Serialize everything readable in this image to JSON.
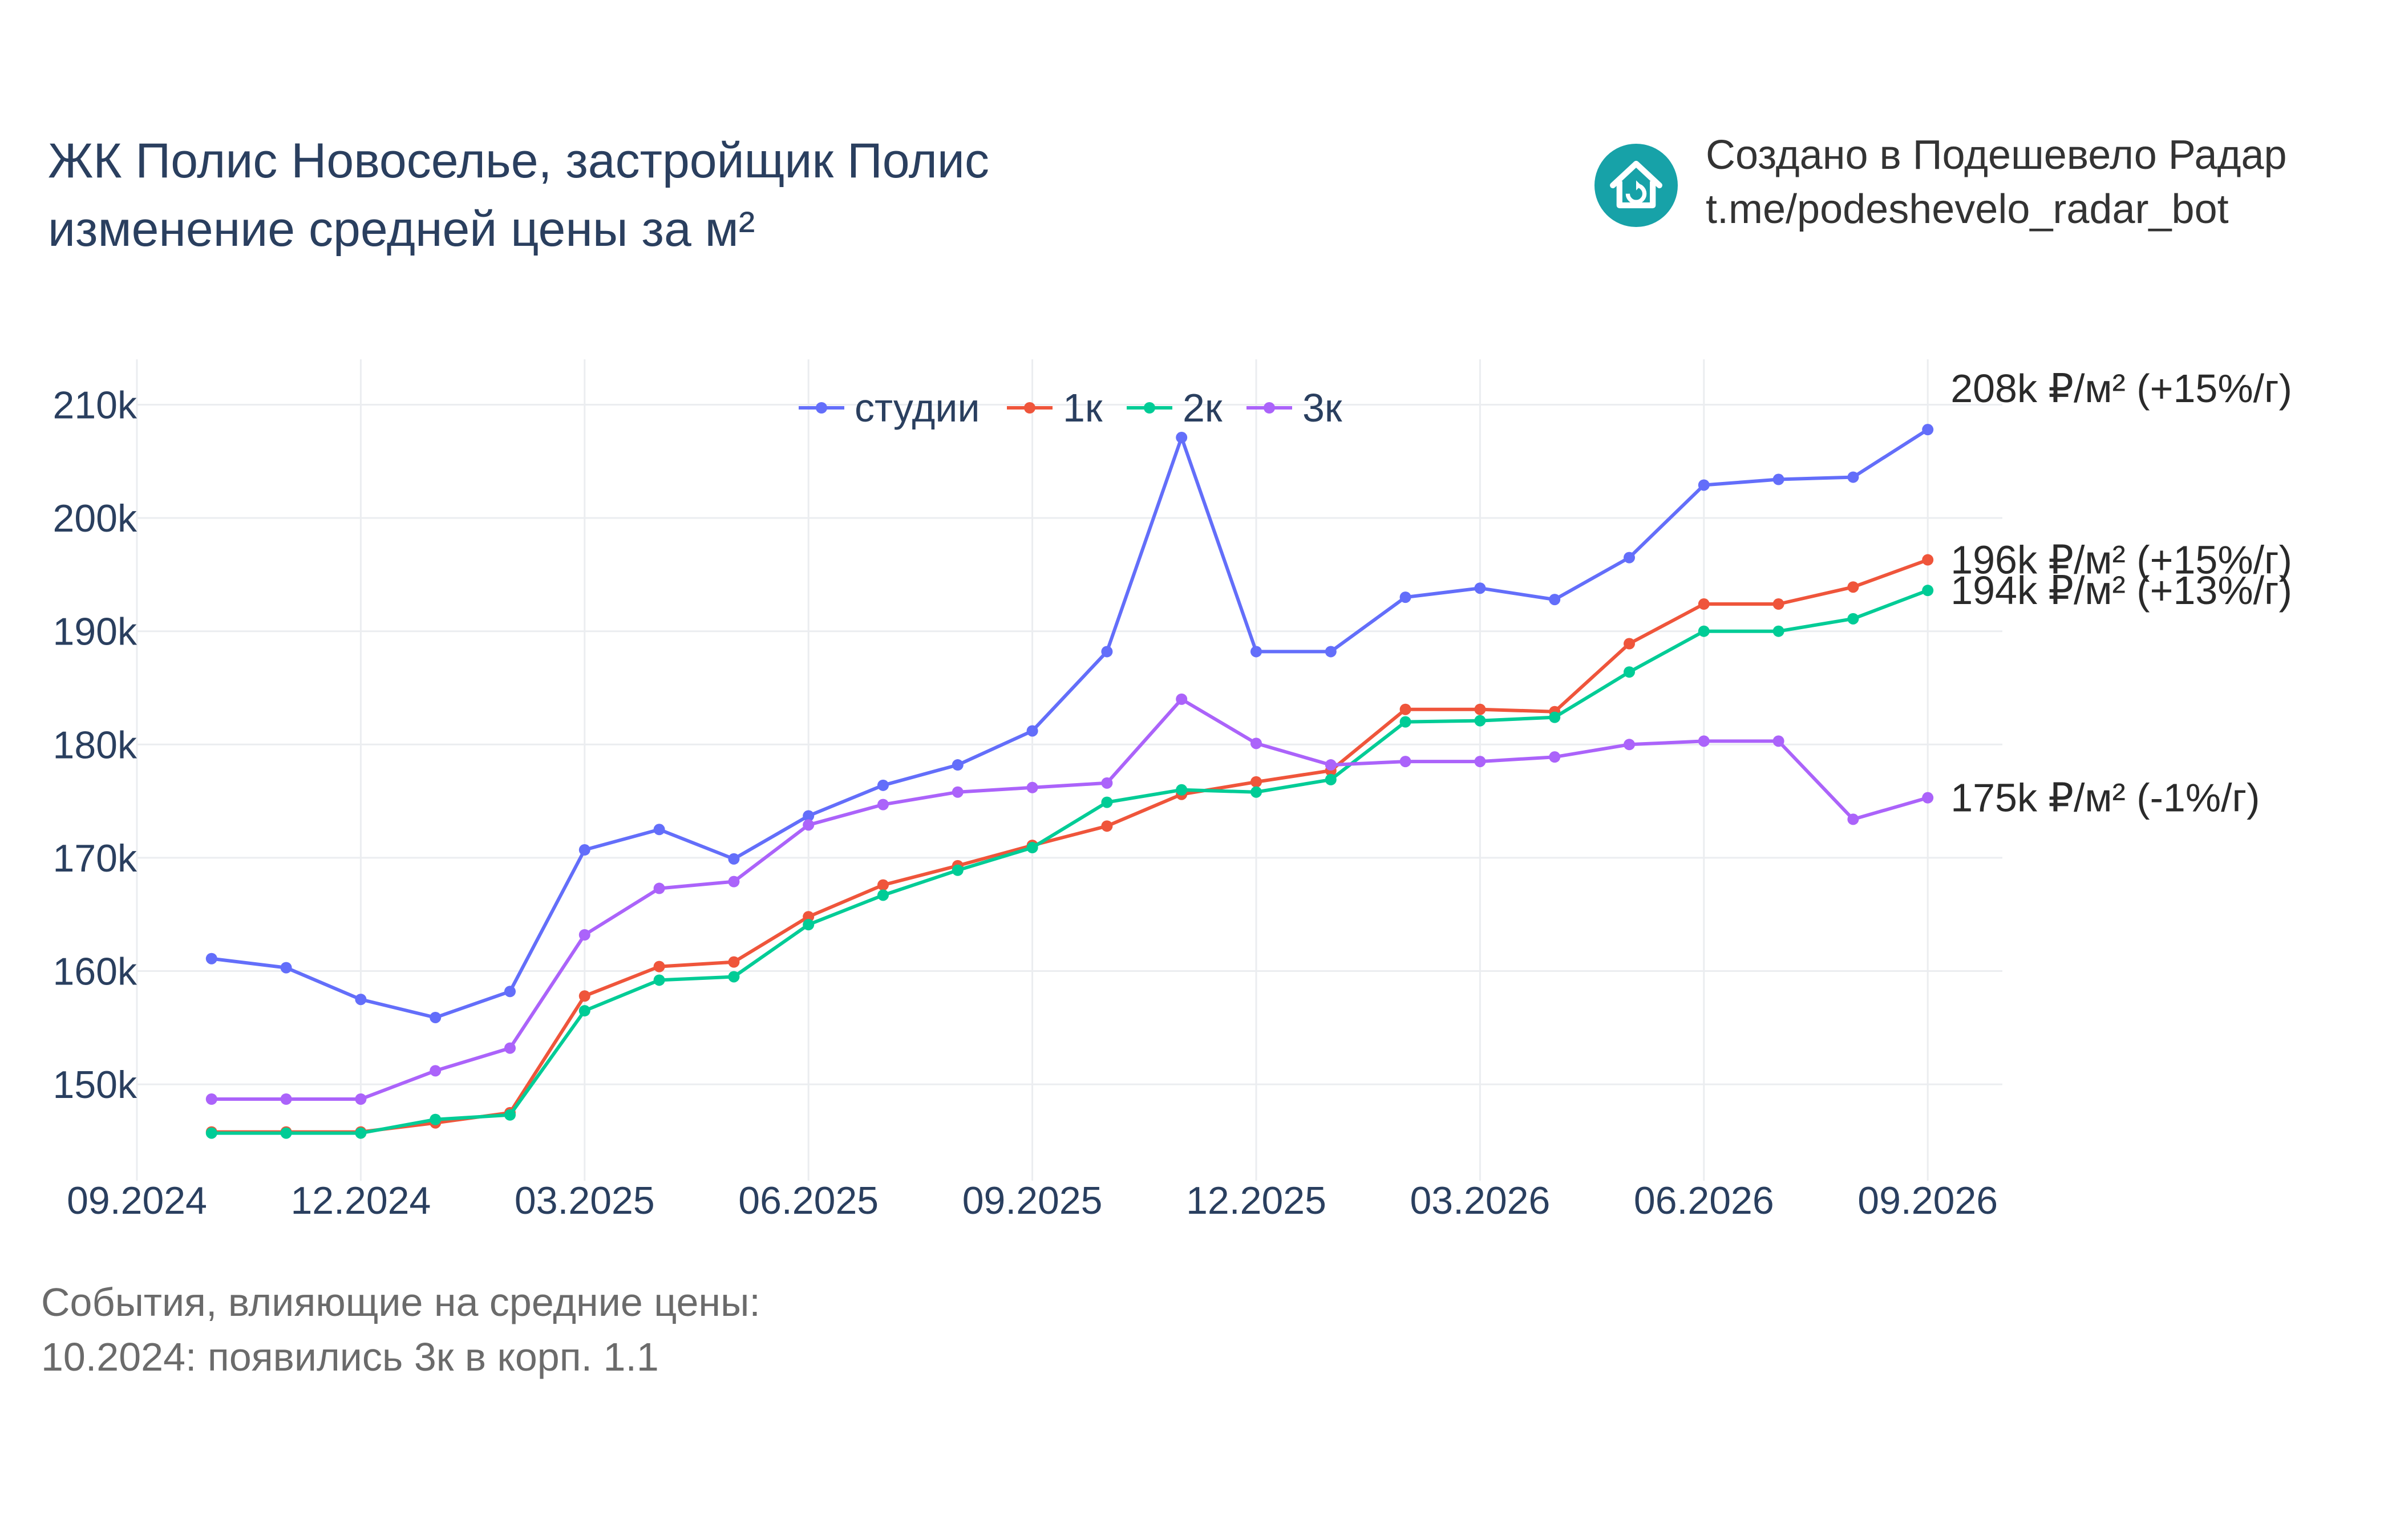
{
  "title": {
    "line1": "ЖК Полис Новоселье, застройщик Полис",
    "line2": "изменение средней цены за м²"
  },
  "credit": {
    "line1": "Создано в Подешевело Радар",
    "line2": "t.me/podeshevelo_radar_bot",
    "logo_icon": "house-logo-icon",
    "logo_color": "#17a2a8"
  },
  "events": {
    "heading": "События, влияющие на средние цены:",
    "items": [
      "10.2024: появились 3к в корп. 1.1"
    ]
  },
  "chart_data": {
    "type": "line",
    "x": [
      "2024-10",
      "2024-11",
      "2024-12",
      "2025-01",
      "2025-02",
      "2025-03",
      "2025-04",
      "2025-05",
      "2025-06",
      "2025-07",
      "2025-08",
      "2025-09",
      "2025-10",
      "2025-11",
      "2025-12",
      "2026-01",
      "2026-02",
      "2026-03",
      "2026-04",
      "2026-05",
      "2026-06",
      "2026-07",
      "2026-08",
      "2026-09"
    ],
    "x_tick_labels": [
      "09.2024",
      "12.2024",
      "03.2025",
      "06.2025",
      "09.2025",
      "12.2025",
      "03.2026",
      "06.2026",
      "09.2026"
    ],
    "x_tick_dates": [
      "2024-09",
      "2024-12",
      "2025-03",
      "2025-06",
      "2025-09",
      "2025-12",
      "2026-03",
      "2026-06",
      "2026-09"
    ],
    "x_range": [
      "2024-09",
      "2026-10"
    ],
    "ylim": [
      141500,
      214000
    ],
    "y_ticks": [
      150000,
      160000,
      170000,
      180000,
      190000,
      200000,
      210000
    ],
    "y_tick_labels": [
      "150k",
      "160k",
      "170k",
      "180k",
      "190k",
      "200k",
      "210k"
    ],
    "grid": true,
    "legend_position": "top-center",
    "series": [
      {
        "name": "студии",
        "color": "#636efa",
        "values": [
          161100,
          160300,
          157500,
          155900,
          158200,
          170700,
          172500,
          169900,
          173700,
          176400,
          178200,
          181200,
          188200,
          207100,
          188200,
          188200,
          193000,
          193800,
          192800,
          196500,
          202900,
          203400,
          203600,
          207800
        ],
        "end_label": "208k ₽/м² (+15%/г)"
      },
      {
        "name": "1к",
        "color": "#ef553b",
        "values": [
          145800,
          145800,
          145800,
          146600,
          147500,
          157800,
          160400,
          160800,
          164800,
          167600,
          169300,
          171100,
          172800,
          175600,
          176700,
          177700,
          183100,
          183100,
          182900,
          188900,
          192400,
          192400,
          193900,
          196300
        ],
        "end_label": "196k ₽/м² (+15%/г)"
      },
      {
        "name": "2к",
        "color": "#00cc96",
        "values": [
          145700,
          145700,
          145700,
          146900,
          147300,
          156500,
          159200,
          159500,
          164100,
          166700,
          168900,
          170900,
          174900,
          176000,
          175800,
          176900,
          182000,
          182100,
          182400,
          186400,
          190000,
          190000,
          191100,
          193600
        ],
        "end_label": "194k ₽/м² (+13%/г)"
      },
      {
        "name": "3к",
        "color": "#ab63fa",
        "values": [
          148700,
          148700,
          148700,
          151200,
          153200,
          163200,
          167300,
          167900,
          172900,
          174700,
          175800,
          176200,
          176600,
          184000,
          180100,
          178200,
          178500,
          178500,
          178900,
          180000,
          180300,
          180300,
          173400,
          175300
        ],
        "end_label": "175k ₽/м² (-1%/г)"
      }
    ]
  }
}
